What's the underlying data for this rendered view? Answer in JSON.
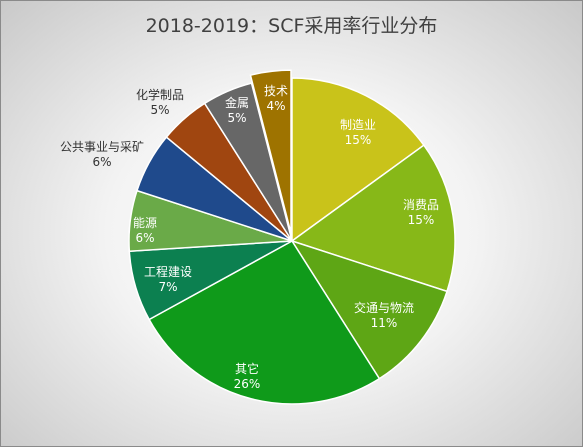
{
  "chart_data": {
    "type": "pie",
    "title": "2018-2019：SCF采用率行业分布",
    "slices": [
      {
        "label": "制造业",
        "value": 15,
        "value_label": "15%",
        "color": "#c9c31a"
      },
      {
        "label": "消费品",
        "value": 15,
        "value_label": "15%",
        "color": "#87b818"
      },
      {
        "label": "交通与物流",
        "value": 11,
        "value_label": "11%",
        "color": "#5ea615"
      },
      {
        "label": "其它",
        "value": 26,
        "value_label": "26%",
        "color": "#0f9a1a"
      },
      {
        "label": "工程建设",
        "value": 7,
        "value_label": "7%",
        "color": "#0c8050"
      },
      {
        "label": "能源",
        "value": 6,
        "value_label": "6%",
        "color": "#6aaa48"
      },
      {
        "label": "公共事业与采矿",
        "value": 6,
        "value_label": "6%",
        "color": "#1f4a8c"
      },
      {
        "label": "化学制品",
        "value": 5,
        "value_label": "5%",
        "color": "#a04610"
      },
      {
        "label": "金属",
        "value": 5,
        "value_label": "5%",
        "color": "#676767"
      },
      {
        "label": "技术",
        "value": 4,
        "value_label": "4%",
        "color": "#9e7300"
      }
    ],
    "start_angle_deg": 0,
    "direction": "clockwise",
    "exploded": [
      "技术"
    ],
    "legend": "none"
  }
}
